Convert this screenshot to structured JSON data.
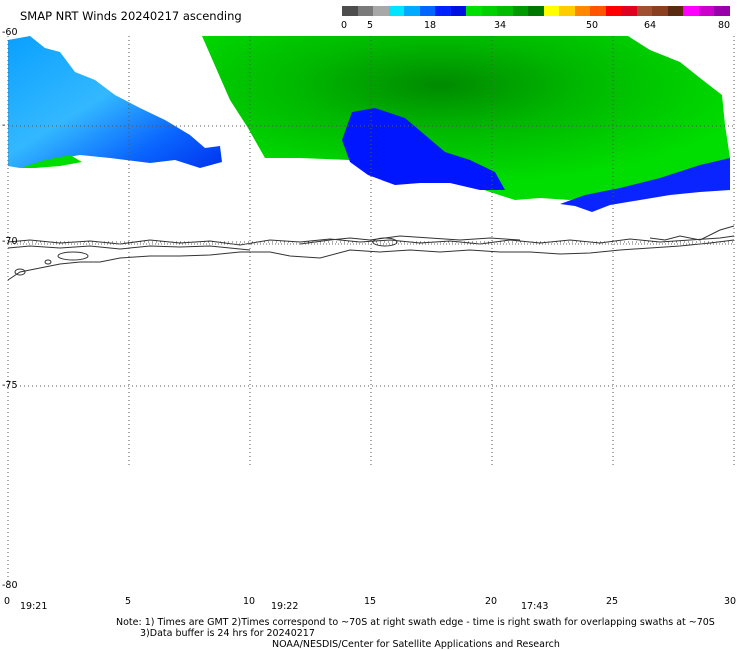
{
  "title": "SMAP NRT Winds 20240217 ascending",
  "scale": {
    "labels": [
      "0",
      "5",
      "18",
      "34",
      "50",
      "64",
      "80"
    ],
    "colors": [
      "#4d4d4d",
      "#7a7a7a",
      "#a8a8a8",
      "#00e5ff",
      "#00aaff",
      "#0066ff",
      "#0022ff",
      "#0010e0",
      "#00e000",
      "#00d000",
      "#00bb00",
      "#009900",
      "#007700",
      "#ffff00",
      "#ffcc00",
      "#ff8800",
      "#ff5500",
      "#ff0000",
      "#e00020",
      "#a05030",
      "#8a4020",
      "#5a2a10",
      "#ff00ff",
      "#cc00cc",
      "#9900aa"
    ]
  },
  "lat_labels": [
    "-60",
    "-",
    "-70",
    "-75",
    "-80"
  ],
  "lon_labels": [
    "0",
    "5",
    "10",
    "15",
    "20",
    "25",
    "30"
  ],
  "time_labels": [
    "19:21",
    "19:22",
    "17:43"
  ],
  "notes": {
    "line1": "Note: 1) Times are GMT 2)Times correspond to ~70S at right swath edge - time is right swath for overlapping swaths at ~70S",
    "line2": "3)Data buffer is 24 hrs for 20240217",
    "line3": "NOAA/NESDIS/Center for Satellite Applications and Research"
  }
}
